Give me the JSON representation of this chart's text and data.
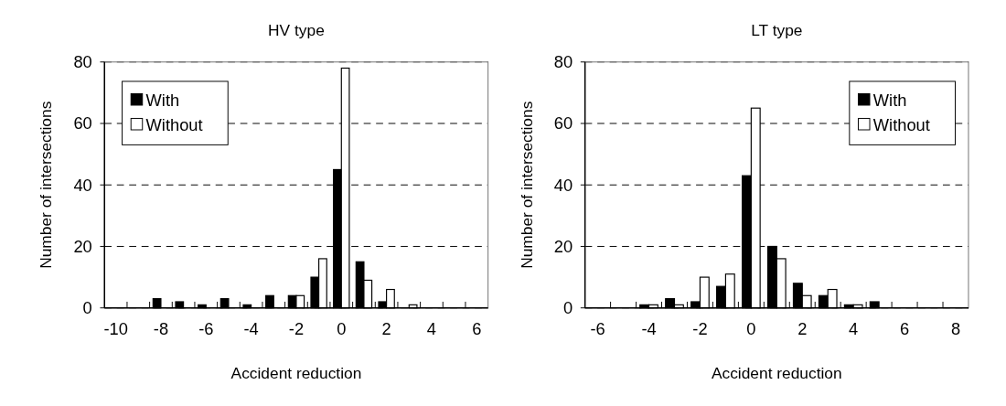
{
  "chart_data": [
    {
      "type": "bar",
      "title": "HV type",
      "xlabel": "Accident reduction",
      "ylabel": "Number of intersections",
      "categories": [
        "-10",
        null,
        "-8",
        null,
        "-6",
        null,
        "-4",
        null,
        "-2",
        null,
        "0",
        null,
        "2",
        null,
        "4",
        null,
        "6"
      ],
      "ylim": [
        0,
        80
      ],
      "yticks": [
        0,
        20,
        40,
        60,
        80
      ],
      "grid": "y",
      "legend": "top left",
      "series": [
        {
          "name": "With",
          "color": "#000000",
          "values": [
            0,
            0,
            3,
            2,
            1,
            3,
            1,
            4,
            4,
            10,
            45,
            15,
            2,
            0,
            0,
            0,
            0
          ]
        },
        {
          "name": "Without",
          "color": "#ffffff",
          "values": [
            0,
            0,
            0,
            0,
            0,
            0,
            0,
            0,
            4,
            16,
            78,
            9,
            6,
            1,
            0,
            0,
            0
          ]
        }
      ]
    },
    {
      "type": "bar",
      "title": "LT type",
      "xlabel": "Accident reduction",
      "ylabel": "Number of intersections",
      "categories": [
        "-6",
        null,
        "-4",
        null,
        "-2",
        null,
        "0",
        null,
        "2",
        null,
        "4",
        null,
        "6",
        null,
        "8"
      ],
      "ylim": [
        0,
        80
      ],
      "yticks": [
        0,
        20,
        40,
        60,
        80
      ],
      "grid": "y",
      "legend": "top right",
      "series": [
        {
          "name": "With",
          "color": "#000000",
          "values": [
            0,
            0,
            1,
            3,
            2,
            7,
            43,
            20,
            8,
            4,
            1,
            2,
            0,
            0,
            0
          ]
        },
        {
          "name": "Without",
          "color": "#ffffff",
          "values": [
            0,
            0,
            1,
            1,
            10,
            11,
            65,
            16,
            4,
            6,
            1,
            0,
            0,
            0,
            0
          ]
        }
      ]
    }
  ]
}
